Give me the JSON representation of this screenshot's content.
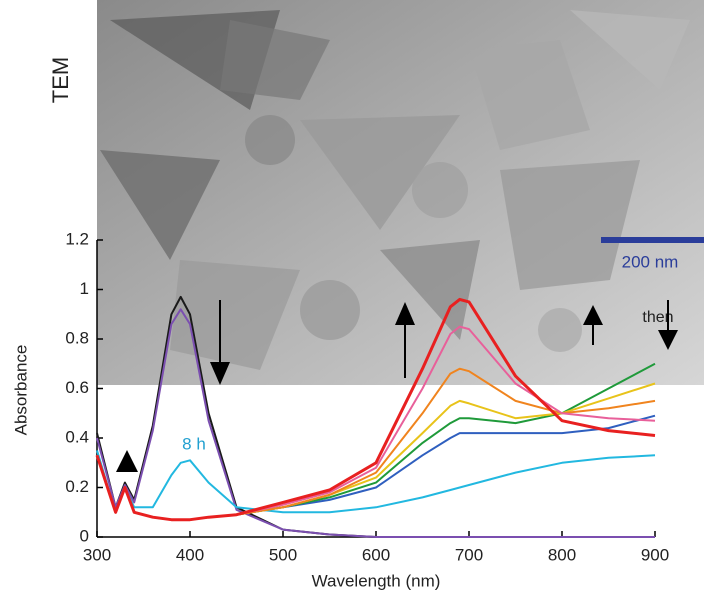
{
  "chart_data": {
    "type": "line",
    "x_label": "Wavelength (nm)",
    "y_label": "Absorbance",
    "annotations": [
      "TEM",
      "200 nm",
      "8 h",
      "then"
    ],
    "x": [
      300,
      320,
      330,
      340,
      360,
      380,
      390,
      400,
      420,
      450,
      500,
      550,
      600,
      650,
      680,
      690,
      700,
      750,
      800,
      850,
      900
    ],
    "series": [
      {
        "color": "#1a1a1a",
        "values": [
          0.42,
          0.12,
          0.22,
          0.15,
          0.45,
          0.9,
          0.97,
          0.9,
          0.5,
          0.12,
          0.03,
          0.01,
          0,
          0,
          0,
          0,
          0,
          0,
          0,
          0,
          0
        ]
      },
      {
        "color": "#7b4fb0",
        "values": [
          0.4,
          0.12,
          0.21,
          0.14,
          0.43,
          0.86,
          0.92,
          0.86,
          0.47,
          0.11,
          0.03,
          0.01,
          0,
          0,
          0,
          0,
          0,
          0,
          0,
          0,
          0
        ]
      },
      {
        "color": "#22b8e0",
        "values": [
          0.35,
          0.1,
          0.2,
          0.12,
          0.12,
          0.25,
          0.3,
          0.31,
          0.22,
          0.12,
          0.1,
          0.1,
          0.12,
          0.16,
          0.19,
          0.2,
          0.21,
          0.26,
          0.3,
          0.32,
          0.33
        ]
      },
      {
        "color": "#2f5fbf",
        "values": [
          0.33,
          0.1,
          0.2,
          0.1,
          0.08,
          0.07,
          0.07,
          0.07,
          0.08,
          0.09,
          0.12,
          0.15,
          0.2,
          0.33,
          0.4,
          0.42,
          0.42,
          0.42,
          0.42,
          0.44,
          0.49
        ]
      },
      {
        "color": "#1f9a3a",
        "values": [
          0.33,
          0.1,
          0.2,
          0.1,
          0.08,
          0.07,
          0.07,
          0.07,
          0.08,
          0.09,
          0.12,
          0.16,
          0.22,
          0.38,
          0.46,
          0.48,
          0.48,
          0.46,
          0.5,
          0.6,
          0.7
        ]
      },
      {
        "color": "#e8c31a",
        "values": [
          0.33,
          0.1,
          0.2,
          0.1,
          0.08,
          0.07,
          0.07,
          0.07,
          0.08,
          0.09,
          0.12,
          0.17,
          0.24,
          0.42,
          0.53,
          0.55,
          0.54,
          0.48,
          0.5,
          0.56,
          0.62
        ]
      },
      {
        "color": "#f0841e",
        "values": [
          0.33,
          0.1,
          0.2,
          0.1,
          0.08,
          0.07,
          0.07,
          0.07,
          0.08,
          0.09,
          0.12,
          0.17,
          0.26,
          0.5,
          0.66,
          0.68,
          0.67,
          0.55,
          0.5,
          0.52,
          0.55
        ]
      },
      {
        "color": "#e8609a",
        "values": [
          0.33,
          0.1,
          0.2,
          0.1,
          0.08,
          0.07,
          0.07,
          0.07,
          0.08,
          0.09,
          0.13,
          0.18,
          0.28,
          0.6,
          0.82,
          0.85,
          0.84,
          0.62,
          0.5,
          0.48,
          0.47
        ]
      },
      {
        "color": "#e82020",
        "values": [
          0.33,
          0.1,
          0.2,
          0.1,
          0.08,
          0.07,
          0.07,
          0.07,
          0.08,
          0.09,
          0.14,
          0.19,
          0.3,
          0.68,
          0.93,
          0.96,
          0.95,
          0.65,
          0.47,
          0.43,
          0.41
        ]
      }
    ],
    "xlim": [
      300,
      900
    ],
    "ylim": [
      0,
      1.2
    ],
    "xticks": [
      300,
      400,
      500,
      600,
      700,
      800,
      900
    ],
    "yticks": [
      0,
      0.2,
      0.4,
      0.6,
      0.8,
      1,
      1.2
    ]
  }
}
